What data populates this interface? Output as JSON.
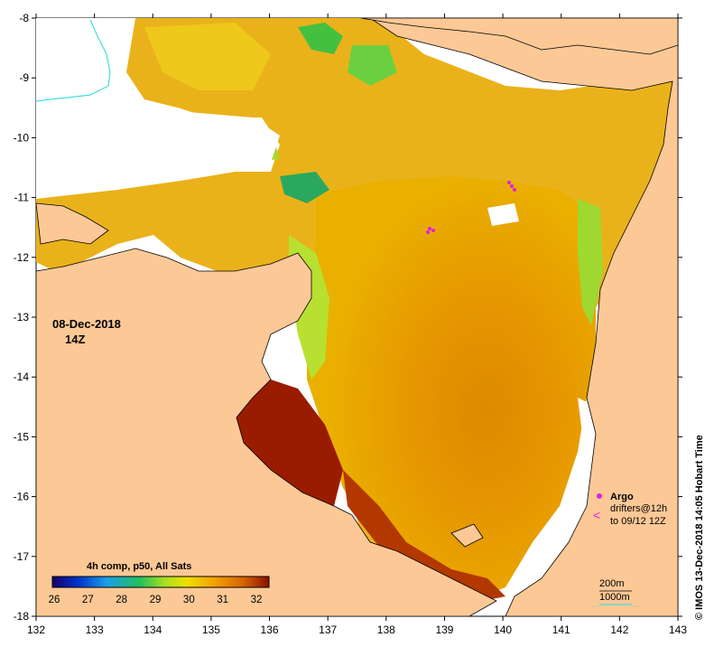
{
  "map": {
    "date": "08-Dec-2018",
    "time": "14Z",
    "composite_label": "4h comp, p50, All Sats",
    "copyright": "© IMOS 13-Dec-2018 14:05 Hobart Time",
    "x_ticks": [
      "132",
      "133",
      "134",
      "135",
      "136",
      "137",
      "138",
      "139",
      "140",
      "141",
      "142",
      "143"
    ],
    "y_ticks": [
      "-8",
      "-9",
      "-10",
      "-11",
      "-12",
      "-13",
      "-14",
      "-15",
      "-16",
      "-17",
      "-18"
    ],
    "colorbar": {
      "labels": [
        "26",
        "27",
        "28",
        "29",
        "30",
        "31",
        "32"
      ],
      "stops": [
        "#18006a",
        "#0033cc",
        "#1a9fea",
        "#20c060",
        "#a8e020",
        "#f0e000",
        "#f2a000",
        "#d86400",
        "#8a1000"
      ]
    },
    "legend": {
      "argo_label": "Argo",
      "drifters_label": "drifters@12h",
      "drifters_time": "to 09/12 12Z",
      "argo_color": "#e020e0"
    },
    "bathymetry": {
      "label_200": "200m",
      "label_1000": "1000m",
      "isobath_color": "#40e0e0"
    },
    "colors": {
      "land": "#fcc896",
      "cloud": "#ffffff",
      "coast": "#000000"
    }
  }
}
